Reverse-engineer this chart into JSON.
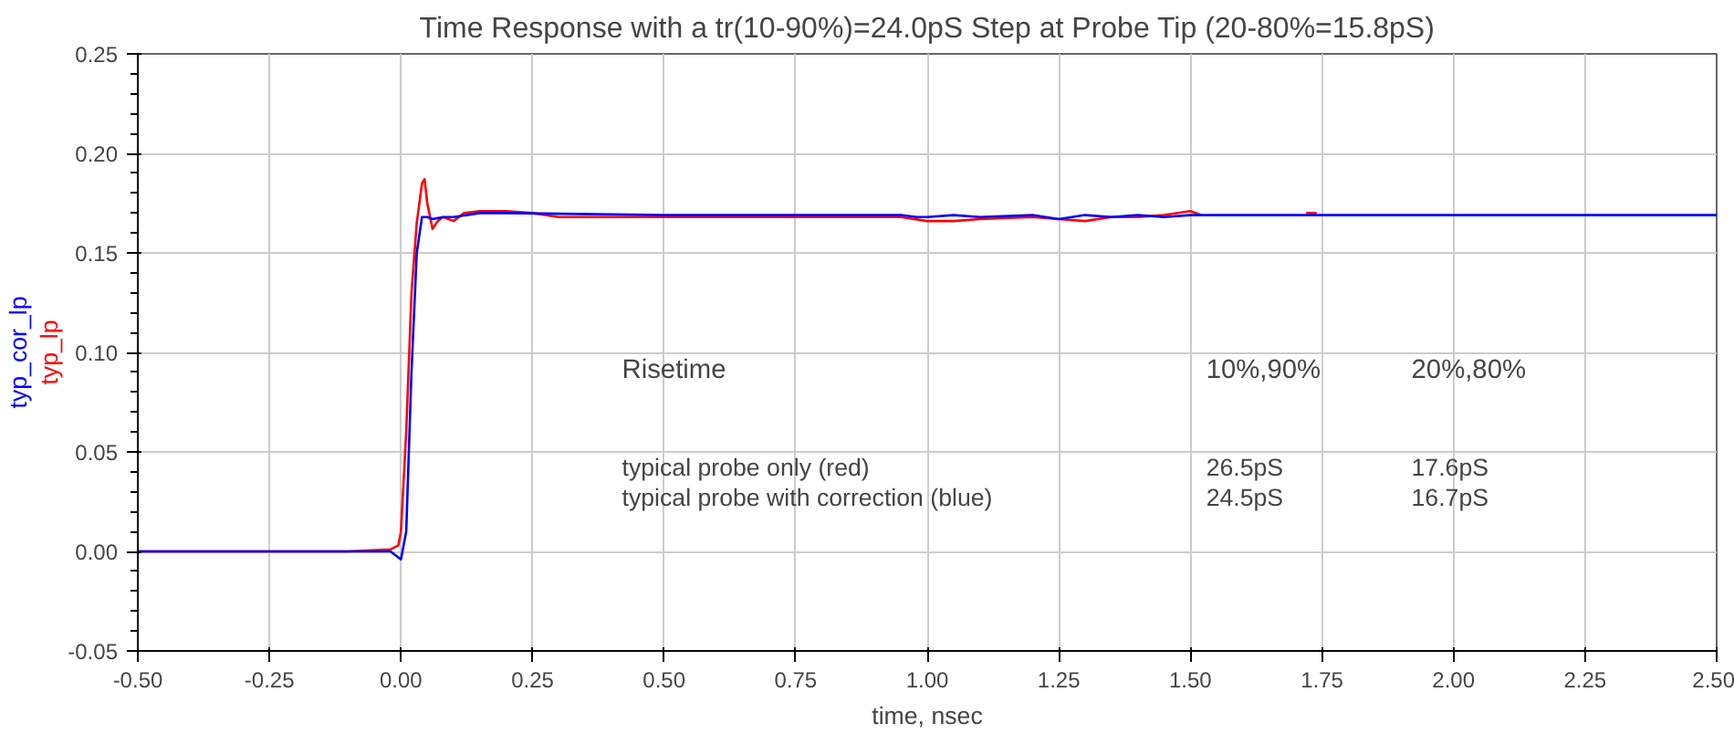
{
  "chart_data": {
    "type": "line",
    "title": "Time Response with a tr(10-90%)=24.0pS Step at Probe Tip (20-80%=15.8pS)",
    "xlabel": "time, nsec",
    "series": [
      {
        "name": "typ_cor_lp",
        "color": "#0000ff",
        "x": [
          -0.5,
          -0.1,
          -0.02,
          0.0,
          0.01,
          0.02,
          0.03,
          0.04,
          0.05,
          0.06,
          0.08,
          0.1,
          0.15,
          0.2,
          0.5,
          0.95,
          0.98,
          1.0,
          1.05,
          1.1,
          1.2,
          1.25,
          1.3,
          1.35,
          1.4,
          1.45,
          1.5,
          1.52,
          2.5
        ],
        "values": [
          0.0,
          0.0,
          0.0,
          -0.004,
          0.01,
          0.09,
          0.15,
          0.168,
          0.168,
          0.167,
          0.168,
          0.168,
          0.17,
          0.17,
          0.169,
          0.169,
          0.168,
          0.168,
          0.169,
          0.168,
          0.169,
          0.167,
          0.169,
          0.168,
          0.169,
          0.168,
          0.169,
          0.169,
          0.169
        ]
      },
      {
        "name": "typ_lp",
        "color": "#ff0000",
        "x": [
          -0.5,
          -0.1,
          -0.02,
          -0.005,
          0.0,
          0.01,
          0.02,
          0.03,
          0.04,
          0.045,
          0.05,
          0.06,
          0.07,
          0.08,
          0.1,
          0.12,
          0.15,
          0.2,
          0.25,
          0.3,
          0.5,
          0.95,
          1.0,
          1.05,
          1.1,
          1.2,
          1.25,
          1.3,
          1.35,
          1.4,
          1.45,
          1.5,
          1.52,
          null,
          1.72,
          1.74
        ],
        "values": [
          0.0,
          0.0,
          0.001,
          0.003,
          0.01,
          0.06,
          0.13,
          0.165,
          0.185,
          0.187,
          0.175,
          0.162,
          0.166,
          0.168,
          0.166,
          0.17,
          0.171,
          0.171,
          0.17,
          0.168,
          0.168,
          0.168,
          0.166,
          0.166,
          0.167,
          0.168,
          0.167,
          0.166,
          0.168,
          0.168,
          0.169,
          0.171,
          0.169,
          null,
          0.17,
          0.17
        ]
      }
    ],
    "xlim": [
      -0.5,
      2.5
    ],
    "xticks": [
      {
        "value": -0.5,
        "label": "-0.50"
      },
      {
        "value": -0.25,
        "label": "-0.25"
      },
      {
        "value": 0,
        "label": "0.00"
      },
      {
        "value": 0.25,
        "label": "0.25"
      },
      {
        "value": 0.5,
        "label": "0.50"
      },
      {
        "value": 0.75,
        "label": "0.75"
      },
      {
        "value": 1,
        "label": "1.00"
      },
      {
        "value": 1.25,
        "label": "1.25"
      },
      {
        "value": 1.5,
        "label": "1.50"
      },
      {
        "value": 1.75,
        "label": "1.75"
      },
      {
        "value": 2,
        "label": "2.00"
      },
      {
        "value": 2.25,
        "label": "2.25"
      },
      {
        "value": 2.5,
        "label": "2.50"
      }
    ],
    "ylim": [
      -0.05,
      0.25
    ],
    "yticks": [
      {
        "value": -0.05,
        "label": "-0.05"
      },
      {
        "value": 0,
        "label": "0.00"
      },
      {
        "value": 0.05,
        "label": "0.05"
      },
      {
        "value": 0.1,
        "label": "0.10"
      },
      {
        "value": 0.15,
        "label": "0.15"
      },
      {
        "value": 0.2,
        "label": "0.20"
      },
      {
        "value": 0.25,
        "label": "0.25"
      }
    ],
    "grid": true,
    "legend": "left",
    "line_style": "solid",
    "marker": "none",
    "annotations": [
      "Risetime",
      "10%,90%",
      "20%,80%",
      "typical probe only (red)",
      "26.5pS",
      "17.6pS",
      "typical probe with correction (blue)",
      "24.5pS",
      "16.7pS"
    ]
  }
}
